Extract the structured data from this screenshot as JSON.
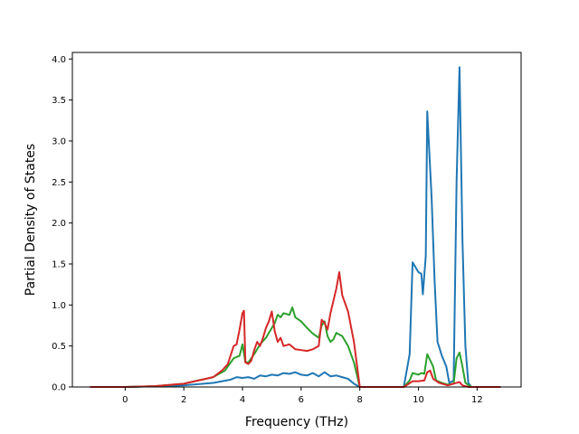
{
  "chart_data": {
    "type": "line",
    "title": "",
    "xlabel": "Frequency (THz)",
    "ylabel": "Partial Density of States",
    "xlim": [
      -1.8,
      13.5
    ],
    "ylim": [
      0.0,
      4.08
    ],
    "xticks": [
      0,
      2,
      4,
      6,
      8,
      10,
      12
    ],
    "yticks": [
      0.0,
      0.5,
      1.0,
      1.5,
      2.0,
      2.5,
      3.0,
      3.5,
      4.0
    ],
    "grid": false,
    "legend": "none",
    "series": [
      {
        "color": "#1f77b4",
        "points": [
          [
            -1.2,
            0
          ],
          [
            0,
            0
          ],
          [
            1,
            0.008
          ],
          [
            2,
            0.02
          ],
          [
            3,
            0.05
          ],
          [
            3.6,
            0.09
          ],
          [
            3.8,
            0.12
          ],
          [
            4.0,
            0.11
          ],
          [
            4.2,
            0.12
          ],
          [
            4.4,
            0.1
          ],
          [
            4.6,
            0.14
          ],
          [
            4.8,
            0.13
          ],
          [
            5.0,
            0.15
          ],
          [
            5.2,
            0.14
          ],
          [
            5.4,
            0.17
          ],
          [
            5.6,
            0.16
          ],
          [
            5.8,
            0.18
          ],
          [
            6.0,
            0.15
          ],
          [
            6.2,
            0.14
          ],
          [
            6.4,
            0.17
          ],
          [
            6.6,
            0.13
          ],
          [
            6.8,
            0.18
          ],
          [
            7.0,
            0.13
          ],
          [
            7.2,
            0.14
          ],
          [
            7.4,
            0.12
          ],
          [
            7.6,
            0.1
          ],
          [
            7.8,
            0.04
          ],
          [
            8.0,
            0
          ],
          [
            9.5,
            0
          ],
          [
            9.7,
            0.4
          ],
          [
            9.8,
            1.52
          ],
          [
            10.0,
            1.4
          ],
          [
            10.1,
            1.38
          ],
          [
            10.15,
            1.13
          ],
          [
            10.25,
            1.6
          ],
          [
            10.3,
            3.36
          ],
          [
            10.45,
            2.3
          ],
          [
            10.55,
            1.3
          ],
          [
            10.65,
            0.55
          ],
          [
            10.8,
            0.38
          ],
          [
            10.95,
            0.25
          ],
          [
            11.05,
            0.05
          ],
          [
            11.2,
            0.08
          ],
          [
            11.3,
            2.5
          ],
          [
            11.35,
            3.2
          ],
          [
            11.4,
            3.9
          ],
          [
            11.5,
            1.8
          ],
          [
            11.6,
            0.5
          ],
          [
            11.7,
            0.05
          ],
          [
            11.8,
            0
          ],
          [
            12.8,
            0
          ]
        ]
      },
      {
        "color": "#2ca02c",
        "points": [
          [
            -1.2,
            0
          ],
          [
            0,
            0
          ],
          [
            1,
            0.01
          ],
          [
            2,
            0.04
          ],
          [
            3,
            0.12
          ],
          [
            3.4,
            0.2
          ],
          [
            3.7,
            0.35
          ],
          [
            3.9,
            0.38
          ],
          [
            4.0,
            0.52
          ],
          [
            4.1,
            0.3
          ],
          [
            4.2,
            0.3
          ],
          [
            4.4,
            0.4
          ],
          [
            4.6,
            0.52
          ],
          [
            4.8,
            0.6
          ],
          [
            5.0,
            0.72
          ],
          [
            5.1,
            0.78
          ],
          [
            5.2,
            0.88
          ],
          [
            5.3,
            0.85
          ],
          [
            5.4,
            0.9
          ],
          [
            5.6,
            0.88
          ],
          [
            5.7,
            0.97
          ],
          [
            5.8,
            0.85
          ],
          [
            6.0,
            0.8
          ],
          [
            6.2,
            0.72
          ],
          [
            6.4,
            0.65
          ],
          [
            6.6,
            0.6
          ],
          [
            6.7,
            0.75
          ],
          [
            6.8,
            0.8
          ],
          [
            6.9,
            0.62
          ],
          [
            7.0,
            0.55
          ],
          [
            7.1,
            0.58
          ],
          [
            7.2,
            0.66
          ],
          [
            7.4,
            0.62
          ],
          [
            7.6,
            0.5
          ],
          [
            7.8,
            0.3
          ],
          [
            8.0,
            0
          ],
          [
            9.5,
            0
          ],
          [
            9.7,
            0.08
          ],
          [
            9.8,
            0.17
          ],
          [
            10.0,
            0.15
          ],
          [
            10.1,
            0.17
          ],
          [
            10.2,
            0.16
          ],
          [
            10.3,
            0.4
          ],
          [
            10.5,
            0.25
          ],
          [
            10.6,
            0.08
          ],
          [
            10.8,
            0.05
          ],
          [
            11.0,
            0.03
          ],
          [
            11.2,
            0.04
          ],
          [
            11.3,
            0.35
          ],
          [
            11.4,
            0.42
          ],
          [
            11.5,
            0.25
          ],
          [
            11.6,
            0.05
          ],
          [
            11.8,
            0
          ],
          [
            12.8,
            0
          ]
        ]
      },
      {
        "color": "#d62728",
        "points": [
          [
            -1.2,
            0
          ],
          [
            0,
            0
          ],
          [
            1,
            0.01
          ],
          [
            2,
            0.04
          ],
          [
            3,
            0.12
          ],
          [
            3.3,
            0.2
          ],
          [
            3.5,
            0.28
          ],
          [
            3.7,
            0.5
          ],
          [
            3.8,
            0.52
          ],
          [
            3.9,
            0.7
          ],
          [
            4.0,
            0.9
          ],
          [
            4.05,
            0.93
          ],
          [
            4.1,
            0.3
          ],
          [
            4.2,
            0.28
          ],
          [
            4.3,
            0.32
          ],
          [
            4.4,
            0.45
          ],
          [
            4.5,
            0.55
          ],
          [
            4.6,
            0.5
          ],
          [
            4.7,
            0.6
          ],
          [
            4.8,
            0.72
          ],
          [
            4.9,
            0.8
          ],
          [
            5.0,
            0.92
          ],
          [
            5.1,
            0.68
          ],
          [
            5.2,
            0.55
          ],
          [
            5.3,
            0.6
          ],
          [
            5.4,
            0.5
          ],
          [
            5.6,
            0.52
          ],
          [
            5.8,
            0.46
          ],
          [
            6.0,
            0.45
          ],
          [
            6.2,
            0.44
          ],
          [
            6.4,
            0.46
          ],
          [
            6.6,
            0.5
          ],
          [
            6.7,
            0.82
          ],
          [
            6.8,
            0.78
          ],
          [
            6.9,
            0.7
          ],
          [
            7.0,
            0.9
          ],
          [
            7.2,
            1.2
          ],
          [
            7.3,
            1.4
          ],
          [
            7.4,
            1.12
          ],
          [
            7.6,
            0.92
          ],
          [
            7.8,
            0.55
          ],
          [
            8.0,
            0
          ],
          [
            9.5,
            0
          ],
          [
            9.8,
            0.07
          ],
          [
            10.0,
            0.07
          ],
          [
            10.2,
            0.08
          ],
          [
            10.3,
            0.18
          ],
          [
            10.4,
            0.2
          ],
          [
            10.5,
            0.1
          ],
          [
            10.7,
            0.05
          ],
          [
            11.0,
            0.02
          ],
          [
            11.3,
            0.05
          ],
          [
            11.4,
            0.06
          ],
          [
            11.5,
            0.02
          ],
          [
            11.7,
            0
          ],
          [
            12.8,
            0
          ]
        ]
      }
    ]
  }
}
